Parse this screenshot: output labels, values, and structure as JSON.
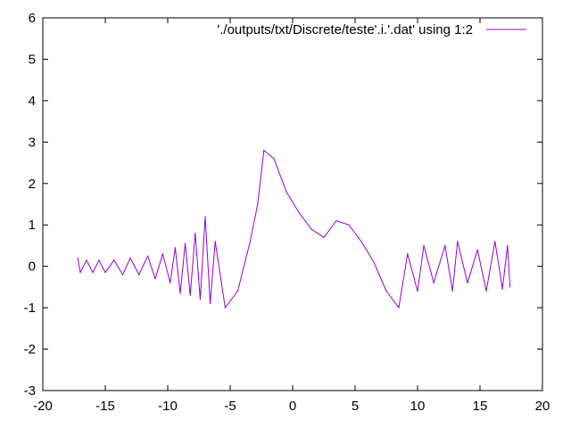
{
  "chart_data": {
    "type": "line",
    "title": "",
    "xlabel": "",
    "ylabel": "",
    "xlim": [
      -20,
      20
    ],
    "ylim": [
      -3,
      6
    ],
    "x_ticks": [
      "-20",
      "-15",
      "-10",
      "-5",
      "0",
      "5",
      "10",
      "15",
      "20"
    ],
    "y_ticks": [
      "-3",
      "-2",
      "-1",
      "0",
      "1",
      "2",
      "3",
      "4",
      "5",
      "6"
    ],
    "grid": false,
    "legend_position": "top-right",
    "series": [
      {
        "name": "'./outputs/txt/Discrete/teste'.i.'.dat' using 1:2",
        "color": "#9400d3",
        "points": [
          [
            -17.2,
            0.2
          ],
          [
            -17.0,
            -0.15
          ],
          [
            -16.5,
            0.15
          ],
          [
            -16.0,
            -0.15
          ],
          [
            -15.5,
            0.15
          ],
          [
            -15.0,
            -0.15
          ],
          [
            -14.3,
            0.15
          ],
          [
            -13.6,
            -0.2
          ],
          [
            -13.0,
            0.2
          ],
          [
            -12.3,
            -0.2
          ],
          [
            -11.6,
            0.25
          ],
          [
            -11.0,
            -0.3
          ],
          [
            -10.4,
            0.3
          ],
          [
            -9.8,
            -0.4
          ],
          [
            -9.4,
            0.45
          ],
          [
            -9.0,
            -0.65
          ],
          [
            -8.6,
            0.55
          ],
          [
            -8.2,
            -0.7
          ],
          [
            -7.8,
            0.8
          ],
          [
            -7.4,
            -0.8
          ],
          [
            -7.0,
            1.2
          ],
          [
            -6.6,
            -0.9
          ],
          [
            -6.2,
            0.6
          ],
          [
            -5.4,
            -1.0
          ],
          [
            -4.4,
            -0.6
          ],
          [
            -3.4,
            0.6
          ],
          [
            -2.8,
            1.5
          ],
          [
            -2.3,
            2.8
          ],
          [
            -1.5,
            2.6
          ],
          [
            -0.5,
            1.8
          ],
          [
            0.5,
            1.3
          ],
          [
            1.5,
            0.9
          ],
          [
            2.5,
            0.7
          ],
          [
            3.5,
            1.1
          ],
          [
            4.5,
            1.0
          ],
          [
            5.5,
            0.6
          ],
          [
            6.5,
            0.1
          ],
          [
            7.5,
            -0.6
          ],
          [
            8.5,
            -1.0
          ],
          [
            9.2,
            0.3
          ],
          [
            10.0,
            -0.6
          ],
          [
            10.5,
            0.5
          ],
          [
            11.3,
            -0.4
          ],
          [
            12.2,
            0.5
          ],
          [
            12.8,
            -0.6
          ],
          [
            13.2,
            0.6
          ],
          [
            14.0,
            -0.4
          ],
          [
            14.8,
            0.4
          ],
          [
            15.5,
            -0.6
          ],
          [
            16.2,
            0.6
          ],
          [
            16.8,
            -0.55
          ],
          [
            17.2,
            0.5
          ],
          [
            17.4,
            -0.5
          ]
        ]
      }
    ]
  }
}
